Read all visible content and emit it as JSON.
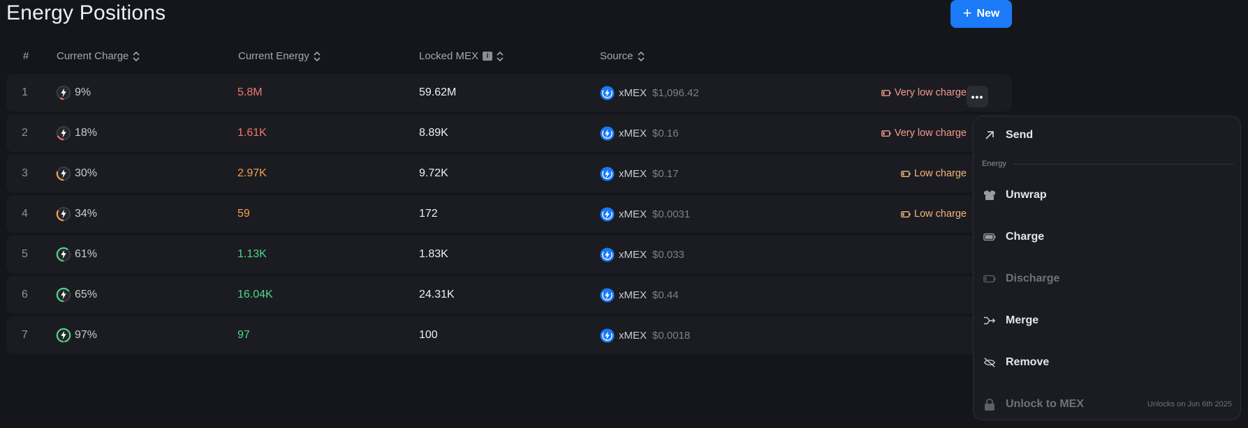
{
  "header": {
    "title": "Energy Positions",
    "new_label": "New"
  },
  "table": {
    "columns": {
      "idx": "#",
      "charge": "Current Charge",
      "energy": "Current Energy",
      "locked": "Locked MEX",
      "source": "Source"
    },
    "rows": [
      {
        "idx": "1",
        "charge": "9%",
        "charge_pct": 9,
        "charge_color": "#f2786c",
        "energy": "5.8M",
        "energy_class": "red",
        "locked": "59.62M",
        "token": "xMEX",
        "usd": "$1,096.42",
        "warning": "Very low charge",
        "warn_class": "warn-red"
      },
      {
        "idx": "2",
        "charge": "18%",
        "charge_pct": 18,
        "charge_color": "#f2786c",
        "energy": "1.61K",
        "energy_class": "red",
        "locked": "8.89K",
        "token": "xMEX",
        "usd": "$0.16",
        "warning": "Very low charge",
        "warn_class": "warn-red"
      },
      {
        "idx": "3",
        "charge": "30%",
        "charge_pct": 30,
        "charge_color": "#f4a24f",
        "energy": "2.97K",
        "energy_class": "orange",
        "locked": "9.72K",
        "token": "xMEX",
        "usd": "$0.17",
        "warning": "Low charge",
        "warn_class": "warn-orange"
      },
      {
        "idx": "4",
        "charge": "34%",
        "charge_pct": 34,
        "charge_color": "#f4a24f",
        "energy": "59",
        "energy_class": "orange",
        "locked": "172",
        "token": "xMEX",
        "usd": "$0.0031",
        "warning": "Low charge",
        "warn_class": "warn-orange"
      },
      {
        "idx": "5",
        "charge": "61%",
        "charge_pct": 61,
        "charge_color": "#4fd68a",
        "energy": "1.13K",
        "energy_class": "green",
        "locked": "1.83K",
        "token": "xMEX",
        "usd": "$0.033",
        "warning": "",
        "warn_class": ""
      },
      {
        "idx": "6",
        "charge": "65%",
        "charge_pct": 65,
        "charge_color": "#4fd68a",
        "energy": "16.04K",
        "energy_class": "green",
        "locked": "24.31K",
        "token": "xMEX",
        "usd": "$0.44",
        "warning": "",
        "warn_class": ""
      },
      {
        "idx": "7",
        "charge": "97%",
        "charge_pct": 97,
        "charge_color": "#4fd68a",
        "energy": "97",
        "energy_class": "green",
        "locked": "100",
        "token": "xMEX",
        "usd": "$0.0018",
        "warning": "",
        "warn_class": ""
      }
    ]
  },
  "menu": {
    "send": "Send",
    "section": "Energy",
    "unwrap": "Unwrap",
    "charge": "Charge",
    "discharge": "Discharge",
    "merge": "Merge",
    "remove": "Remove",
    "unlock": "Unlock to MEX",
    "unlock_note": "Unlocks on Jun 6th 2025"
  },
  "colors": {
    "accent": "#1a7af8",
    "background": "#15161b",
    "row": "#1b1c21"
  },
  "icons": {
    "sort": "sort-icon",
    "info": "info-icon",
    "token": "xmex-token-icon",
    "more": "more-icon"
  }
}
